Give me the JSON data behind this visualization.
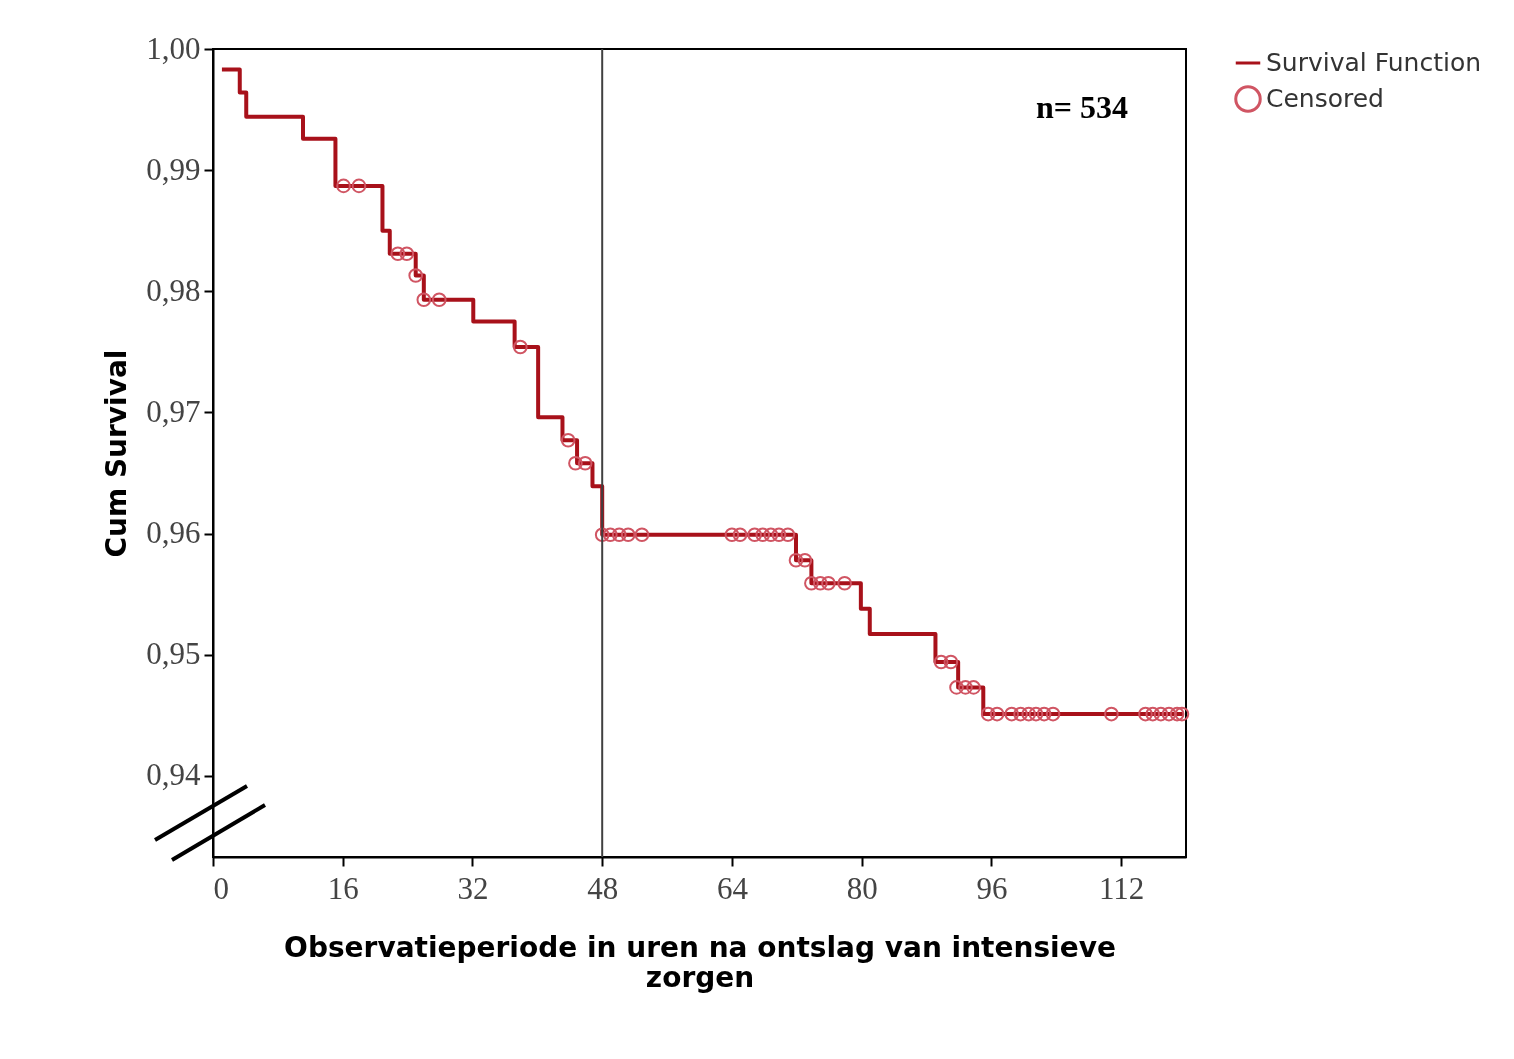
{
  "chart_data": {
    "type": "step",
    "xlabel": "Observatieperiode in uren na ontslag van intensieve zorgen",
    "ylabel": "Cum Survival",
    "annotations": [
      "n= 534"
    ],
    "xlim": [
      0,
      120
    ],
    "xticks": [
      0,
      16,
      32,
      48,
      64,
      80,
      96,
      112
    ],
    "ylim": [
      0.9333,
      1.0
    ],
    "yticks": [
      {
        "value": 0.94,
        "label": "0,94"
      },
      {
        "value": 0.95,
        "label": "0,95"
      },
      {
        "value": 0.96,
        "label": "0,96"
      },
      {
        "value": 0.97,
        "label": "0,97"
      },
      {
        "value": 0.98,
        "label": "0,98"
      },
      {
        "value": 0.99,
        "label": "0,99"
      },
      {
        "value": 1.0,
        "label": "1,00"
      }
    ],
    "grid": false,
    "legend": "right",
    "ref_lines": [
      {
        "axis": "x",
        "value": 48,
        "color": "#404040"
      }
    ],
    "series": [
      {
        "name": "Survival Function",
        "type": "step",
        "color": "#a8111a",
        "line_style": "solid",
        "marker": "none",
        "x": [
          1.1,
          3.3,
          4.1,
          11.1,
          15.1,
          20.9,
          21.8,
          25.0,
          26.0,
          32.1,
          37.2,
          40.1,
          43.1,
          44.9,
          46.8,
          48.0,
          71.9,
          73.8,
          79.9,
          81.0,
          89.1,
          91.9,
          95.0,
          119.7
        ],
        "values": [
          0.9983,
          0.9964,
          0.9944,
          0.9926,
          0.9887,
          0.985,
          0.9831,
          0.9813,
          0.9793,
          0.9775,
          0.9754,
          0.9696,
          0.9677,
          0.9658,
          0.9639,
          0.9599,
          0.9578,
          0.9559,
          0.9538,
          0.9517,
          0.9494,
          0.9473,
          0.9451,
          0.9451
        ]
      },
      {
        "name": "Censored",
        "type": "scatter",
        "color": "#d05563",
        "marker": "circle",
        "x": [
          16.1,
          18.0,
          22.8,
          23.9,
          25.0,
          26.0,
          27.9,
          37.9,
          43.8,
          44.7,
          45.9,
          48.0,
          49.0,
          50.1,
          51.2,
          52.9,
          64.0,
          65.0,
          66.8,
          67.8,
          68.8,
          69.8,
          70.9,
          71.9,
          73.0,
          73.8,
          74.9,
          75.9,
          77.9,
          89.8,
          91.0,
          91.7,
          92.8,
          93.8,
          95.6,
          96.7,
          98.5,
          99.6,
          100.6,
          101.5,
          102.5,
          103.6,
          110.8,
          115.0,
          115.9,
          116.9,
          117.9,
          118.9,
          119.5
        ],
        "values": [
          0.9887,
          0.9887,
          0.9831,
          0.9831,
          0.9813,
          0.9793,
          0.9793,
          0.9754,
          0.9677,
          0.9658,
          0.9658,
          0.9599,
          0.9599,
          0.9599,
          0.9599,
          0.9599,
          0.9599,
          0.9599,
          0.9599,
          0.9599,
          0.9599,
          0.9599,
          0.9599,
          0.9578,
          0.9578,
          0.9559,
          0.9559,
          0.9559,
          0.9559,
          0.9494,
          0.9494,
          0.9473,
          0.9473,
          0.9473,
          0.9451,
          0.9451,
          0.9451,
          0.9451,
          0.9451,
          0.9451,
          0.9451,
          0.9451,
          0.9451,
          0.9451,
          0.9451,
          0.9451,
          0.9451,
          0.9451,
          0.9451
        ]
      }
    ]
  }
}
